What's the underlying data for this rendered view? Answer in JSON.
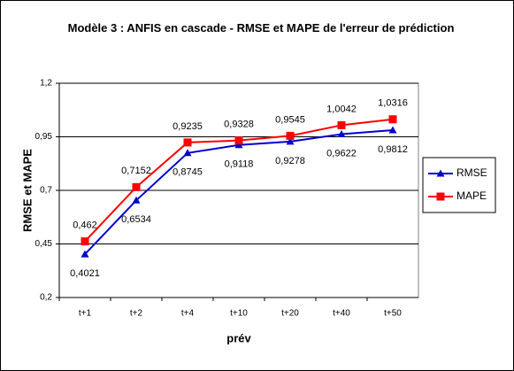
{
  "chart_data": {
    "type": "line",
    "title": "Modèle 3 : ANFIS en cascade - RMSE et MAPE de l'erreur de prédiction",
    "x_label": "prév",
    "y_label": "RMSE et MAPE",
    "categories": [
      "t+1",
      "t+2",
      "t+4",
      "t+10",
      "t+20",
      "t+40",
      "t+50"
    ],
    "series": [
      {
        "name": "RMSE",
        "color": "#0000cc",
        "marker": "triangle",
        "values": [
          0.4021,
          0.6534,
          0.8745,
          0.9118,
          0.9278,
          0.9622,
          0.9812
        ],
        "value_labels": [
          "0,4021",
          "0,6534",
          "0,8745",
          "0,9118",
          "0,9278",
          "0,9622",
          "0,9812"
        ]
      },
      {
        "name": "MAPE",
        "color": "#ff0000",
        "marker": "square",
        "values": [
          0.462,
          0.7152,
          0.9235,
          0.9328,
          0.9545,
          1.0042,
          1.0316
        ],
        "value_labels": [
          "0,462",
          "0,7152",
          "0,9235",
          "0,9328",
          "0,9545",
          "1,0042",
          "1,0316"
        ]
      }
    ],
    "ylim": [
      0.2,
      1.2
    ],
    "yticks": [
      {
        "value": 0.2,
        "label": "0,2"
      },
      {
        "value": 0.45,
        "label": "0,45"
      },
      {
        "value": 0.7,
        "label": "0,7"
      },
      {
        "value": 0.95,
        "label": "0,95"
      },
      {
        "value": 1.2,
        "label": "1,2"
      }
    ],
    "grid": true,
    "legend": "right"
  }
}
